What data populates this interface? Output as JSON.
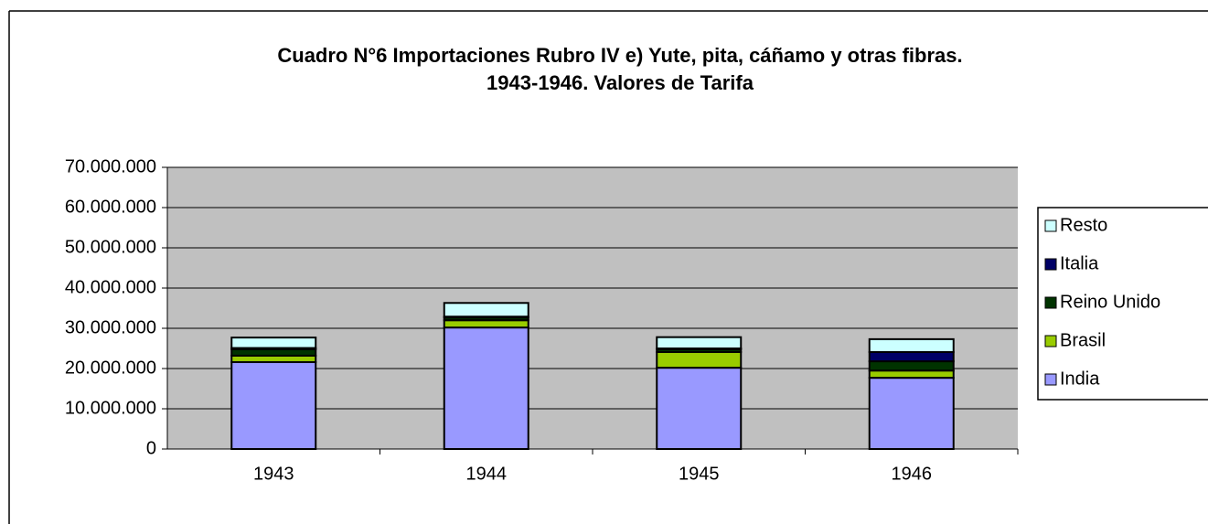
{
  "chart_data": {
    "type": "stacked_bar",
    "title": "Cuadro N°6 Importaciones Rubro IV e) Yute, pita, cáñamo y otras fibras.",
    "subtitle": "1943-1946. Valores de Tarifa",
    "categories": [
      "1943",
      "1944",
      "1945",
      "1946"
    ],
    "series": [
      {
        "name": "India",
        "color": "#9999ff",
        "values": [
          21600000,
          30200000,
          20200000,
          17700000
        ]
      },
      {
        "name": "Brasil",
        "color": "#99cc00",
        "values": [
          1600000,
          1800000,
          3900000,
          1800000
        ]
      },
      {
        "name": "Reino Unido",
        "color": "#003300",
        "values": [
          1600000,
          700000,
          700000,
          2300000
        ]
      },
      {
        "name": "Italia",
        "color": "#000066",
        "values": [
          300000,
          200000,
          200000,
          2300000
        ]
      },
      {
        "name": "Resto",
        "color": "#ccffff",
        "values": [
          2600000,
          3400000,
          2800000,
          3200000
        ]
      }
    ],
    "ylim": [
      0,
      70000000
    ],
    "yticks": [
      0,
      {
        "value": 10000000,
        "label": "10.000.000"
      },
      {
        "value": 20000000,
        "label": "20.000.000"
      },
      {
        "value": 30000000,
        "label": "30.000.000"
      },
      {
        "value": 40000000,
        "label": "40.000.000"
      },
      {
        "value": 50000000,
        "label": "50.000.000"
      },
      {
        "value": 60000000,
        "label": "60.000.000"
      },
      {
        "value": 70000000,
        "label": "70.000.000"
      }
    ],
    "grid": true,
    "legend": "right"
  }
}
